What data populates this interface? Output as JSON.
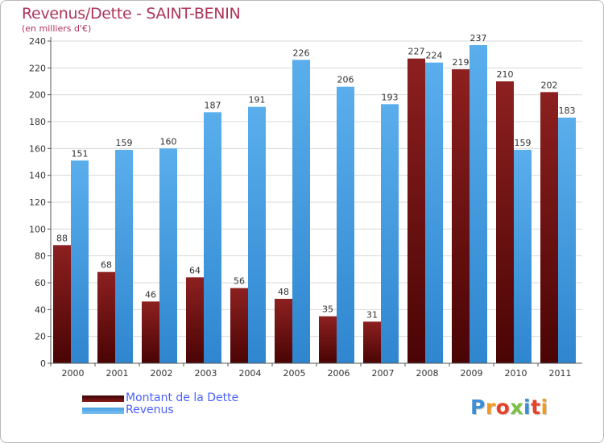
{
  "chart_data": {
    "type": "bar",
    "title": "Revenus/Dette - SAINT-BENIN",
    "subtitle": "(en milliers d'€)",
    "categories": [
      "2000",
      "2001",
      "2002",
      "2003",
      "2004",
      "2005",
      "2006",
      "2007",
      "2008",
      "2009",
      "2010",
      "2011"
    ],
    "series": [
      {
        "name": "Montant de la Dette",
        "color": "#7a1414",
        "values": [
          88,
          68,
          46,
          64,
          56,
          48,
          35,
          31,
          227,
          219,
          210,
          202
        ]
      },
      {
        "name": "Revenus",
        "color": "#4ba3e6",
        "values": [
          151,
          159,
          160,
          187,
          191,
          226,
          206,
          193,
          224,
          237,
          159,
          183
        ]
      }
    ],
    "ylim": [
      0,
      240
    ],
    "yticks": [
      0,
      20,
      40,
      60,
      80,
      100,
      120,
      140,
      160,
      180,
      200,
      220,
      240
    ],
    "grid": true,
    "legend": "bottom-left"
  },
  "logo": {
    "text": "Proxiti",
    "letter_colors": [
      "#3a8fd6",
      "#f29a1f",
      "#e8412a",
      "#7cc142",
      "#3a8fd6",
      "#e8412a",
      "#f29a1f"
    ]
  }
}
